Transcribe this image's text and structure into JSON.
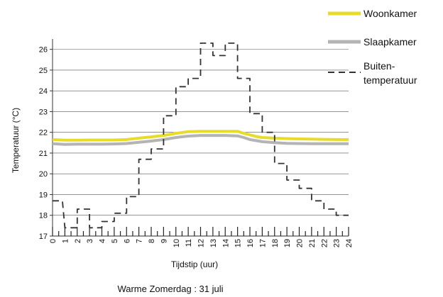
{
  "chart_data": {
    "type": "line",
    "title": "",
    "caption": "Warme Zomerdag : 31 juli",
    "xlabel": "Tijdstip (uur)",
    "ylabel": "Temperatuur (°C)",
    "xlim": [
      0,
      24
    ],
    "ylim": [
      17,
      26.5
    ],
    "x_ticks": [
      0,
      1,
      2,
      3,
      4,
      5,
      6,
      7,
      8,
      9,
      10,
      11,
      12,
      13,
      14,
      15,
      16,
      17,
      18,
      19,
      20,
      21,
      22,
      23,
      24
    ],
    "y_ticks": [
      17,
      18,
      19,
      20,
      21,
      22,
      23,
      24,
      25,
      26
    ],
    "grid": "horizontal",
    "legend_position": "top-right",
    "legend": [
      {
        "label": "Woonkamer"
      },
      {
        "label": "Slaapkamer"
      },
      {
        "label": "Buiten-",
        "label2": "temperatuur"
      }
    ],
    "series": [
      {
        "name": "Woonkamer",
        "color": "#e8dc2a",
        "style": "solid",
        "x": [
          0,
          1,
          2,
          3,
          4,
          5,
          6,
          7,
          8,
          9,
          10,
          11,
          12,
          13,
          14,
          15,
          15.5,
          16,
          16.5,
          17,
          18,
          19,
          20,
          21,
          22,
          23,
          24
        ],
        "y": [
          21.65,
          21.62,
          21.62,
          21.63,
          21.63,
          21.63,
          21.65,
          21.72,
          21.78,
          21.85,
          21.95,
          22.03,
          22.05,
          22.05,
          22.05,
          22.05,
          21.95,
          21.88,
          21.8,
          21.75,
          21.72,
          21.7,
          21.68,
          21.67,
          21.66,
          21.65,
          21.65
        ]
      },
      {
        "name": "Slaapkamer",
        "color": "#b4b4b4",
        "style": "solid",
        "x": [
          0,
          1,
          2,
          3,
          4,
          5,
          6,
          7,
          8,
          9,
          10,
          11,
          12,
          13,
          14,
          15,
          15.5,
          16,
          16.5,
          17,
          18,
          19,
          20,
          21,
          22,
          23,
          24
        ],
        "y": [
          21.45,
          21.42,
          21.43,
          21.43,
          21.43,
          21.44,
          21.46,
          21.52,
          21.58,
          21.65,
          21.75,
          21.82,
          21.85,
          21.85,
          21.85,
          21.83,
          21.75,
          21.65,
          21.6,
          21.55,
          21.5,
          21.47,
          21.46,
          21.45,
          21.45,
          21.45,
          21.45
        ]
      },
      {
        "name": "Buitentemperatuur",
        "color": "#333333",
        "style": "dashed",
        "x": [
          0,
          0.8,
          1,
          2,
          2,
          3,
          3,
          4,
          4,
          5,
          5,
          6,
          6,
          7,
          7,
          8,
          8,
          9,
          9,
          10,
          10,
          11,
          11,
          12,
          12,
          13,
          13,
          14,
          14,
          15,
          15,
          16,
          16,
          17,
          17,
          18,
          18,
          19,
          19,
          20,
          20,
          21,
          21,
          22,
          22,
          23,
          23,
          24
        ],
        "y": [
          18.7,
          18.7,
          17.4,
          17.4,
          18.3,
          18.3,
          17.4,
          17.4,
          17.7,
          17.7,
          18.1,
          18.1,
          18.9,
          18.9,
          20.7,
          20.7,
          21.2,
          21.2,
          22.8,
          22.8,
          24.2,
          24.2,
          24.6,
          24.6,
          26.3,
          26.3,
          25.7,
          25.7,
          26.3,
          26.3,
          24.6,
          24.6,
          22.9,
          22.9,
          22.0,
          22.0,
          20.5,
          20.5,
          19.7,
          19.7,
          19.3,
          19.3,
          18.7,
          18.7,
          18.3,
          18.3,
          18.0,
          18.0
        ]
      }
    ]
  }
}
